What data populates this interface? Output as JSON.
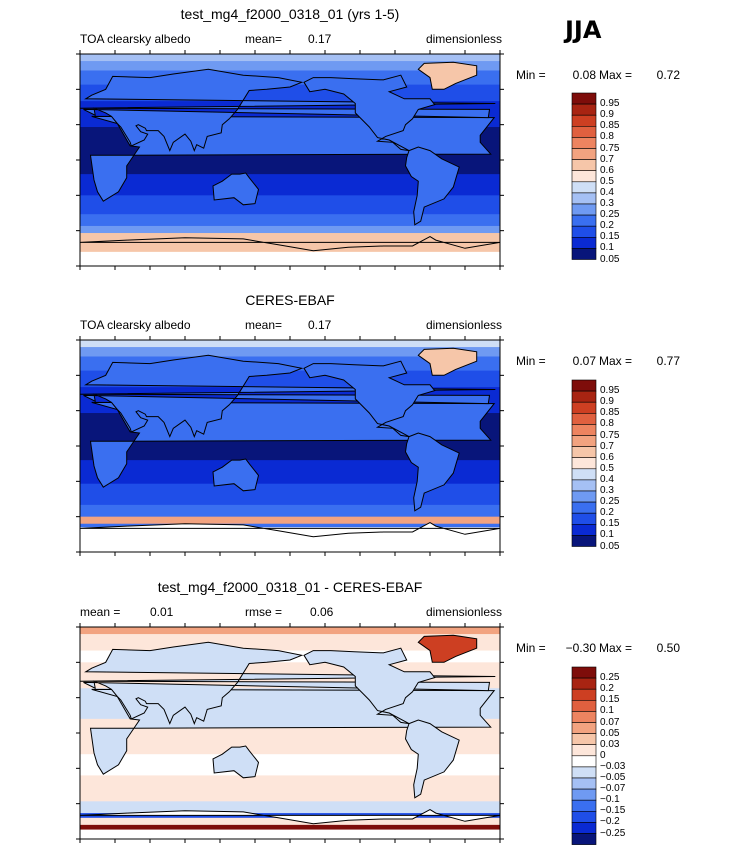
{
  "season_label": "JJA",
  "panels": [
    {
      "title": "test_mg4_f2000_0318_01 (yrs 1-5)",
      "hdr_left": "TOA clearsky albedo",
      "hdr_mid_label": "mean=",
      "hdr_mid_value": "0.17",
      "hdr_extra_label": "",
      "hdr_extra_value": "",
      "hdr_right": "dimensionless",
      "min_label": "Min =",
      "min_value": "0.08",
      "max_label": "Max =",
      "max_value": "0.72",
      "cb_labels": [
        "0.95",
        "0.9",
        "0.85",
        "0.8",
        "0.75",
        "0.7",
        "0.6",
        "0.5",
        "0.4",
        "0.3",
        "0.25",
        "0.2",
        "0.15",
        "0.1",
        "0.05"
      ]
    },
    {
      "title": "CERES-EBAF",
      "hdr_left": "TOA clearsky albedo",
      "hdr_mid_label": "mean=",
      "hdr_mid_value": "0.17",
      "hdr_extra_label": "",
      "hdr_extra_value": "",
      "hdr_right": "dimensionless",
      "min_label": "Min =",
      "min_value": "0.07",
      "max_label": "Max =",
      "max_value": "0.77",
      "cb_labels": [
        "0.95",
        "0.9",
        "0.85",
        "0.8",
        "0.75",
        "0.7",
        "0.6",
        "0.5",
        "0.4",
        "0.3",
        "0.25",
        "0.2",
        "0.15",
        "0.1",
        "0.05"
      ]
    },
    {
      "title": "test_mg4_f2000_0318_01 - CERES-EBAF",
      "hdr_left": "mean =",
      "hdr_mid_label": "0.01",
      "hdr_mid_value": "",
      "hdr_extra_label": "rmse =",
      "hdr_extra_value": "0.06",
      "hdr_right": "dimensionless",
      "min_label": "Min =",
      "min_value": "−0.30",
      "max_label": "Max =",
      "max_value": "0.50",
      "cb_labels": [
        "0.25",
        "0.2",
        "0.15",
        "0.1",
        "0.07",
        "0.05",
        "0.03",
        "0",
        "−0.03",
        "−0.05",
        "−0.07",
        "−0.1",
        "−0.15",
        "−0.2",
        "−0.25"
      ]
    }
  ],
  "chart_data": {
    "type": "heatmap",
    "panels": [
      "test_mg4_f2000_0318_01 (yrs 1-5)",
      "CERES-EBAF",
      "test_mg4_f2000_0318_01 - CERES-EBAF"
    ],
    "variable": "TOA clearsky albedo",
    "units": "dimensionless",
    "season": "JJA",
    "x_ticks": [
      "0",
      "30E",
      "60E",
      "90E",
      "120E",
      "150E",
      "180",
      "150W",
      "120W",
      "90W",
      "60W",
      "30W",
      "0"
    ],
    "y_ticks": [
      "90N",
      "60N",
      "30N",
      "0",
      "30S",
      "60S",
      "90S"
    ],
    "xlim": [
      0,
      360
    ],
    "ylim": [
      -90,
      90
    ],
    "means": [
      0.17,
      0.17,
      0.01
    ],
    "rmse_difference": 0.06,
    "min_max": [
      [
        0.08,
        0.72
      ],
      [
        0.07,
        0.77
      ],
      [
        -0.3,
        0.5
      ]
    ],
    "colors": {
      "abs_levels": [
        "#08157a",
        "#0a2ad3",
        "#1f4ee8",
        "#3a6ff0",
        "#6f9af2",
        "#a5c0f4",
        "#cfdff6",
        "#fde6da",
        "#f6c6a9",
        "#f2a380",
        "#ed8460",
        "#e0603f",
        "#cd3f22",
        "#a82412",
        "#7e0d0a"
      ],
      "diff_levels": [
        "#08157a",
        "#0a2ad3",
        "#1f4ee8",
        "#3a6ff0",
        "#6f9af2",
        "#a5c0f4",
        "#cfdff6",
        "#ffffff",
        "#fde6da",
        "#f6c6a9",
        "#f2a380",
        "#ed8460",
        "#e0603f",
        "#cd3f22",
        "#a82412",
        "#7e0d0a"
      ]
    }
  },
  "x_ticks": [
    "0",
    "30E",
    "60E",
    "90E",
    "120E",
    "150E",
    "180",
    "150W",
    "120W",
    "90W",
    "60W",
    "30W",
    "0"
  ],
  "y_ticks": [
    "90N",
    "60N",
    "30N",
    "0",
    "30S",
    "60S",
    "90S"
  ]
}
